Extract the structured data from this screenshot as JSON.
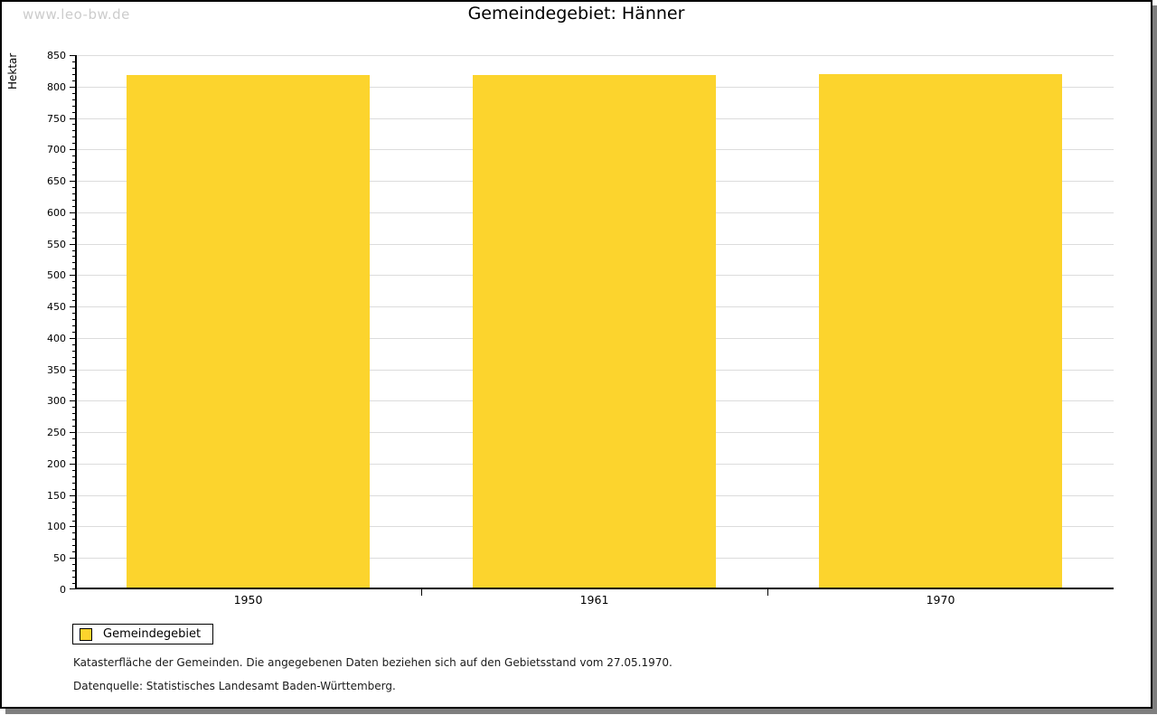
{
  "watermark": "www.leo-bw.de",
  "title": "Gemeindegebiet: Hänner",
  "chart_data": {
    "type": "bar",
    "title": "Gemeindegebiet: Hänner",
    "categories": [
      "1950",
      "1961",
      "1970"
    ],
    "series": [
      {
        "name": "Gemeindegebiet",
        "values": [
          818,
          818,
          820
        ]
      }
    ],
    "xlabel": "",
    "ylabel": "Hektar",
    "ylim": [
      0,
      850
    ],
    "ytick_step": 50,
    "yminor_step": 10,
    "grid": true,
    "bar_color": "#fcd42d",
    "bar_width_fraction": 0.7,
    "legend_position": "bottom-left"
  },
  "legend": {
    "label": "Gemeindegebiet",
    "swatch_color": "#fcd42d"
  },
  "footnotes": {
    "line1": "Katasterfläche der Gemeinden. Die angegebenen Daten beziehen sich auf den Gebietsstand vom 27.05.1970.",
    "line2": "Datenquelle: Statistisches Landesamt Baden-Württemberg."
  },
  "colors": {
    "bar": "#fcd42d",
    "gridline": "#dcdcdc",
    "axis": "#000000",
    "watermark": "#cccccc",
    "shadow": "#7f7f7f",
    "background": "#ffffff"
  }
}
